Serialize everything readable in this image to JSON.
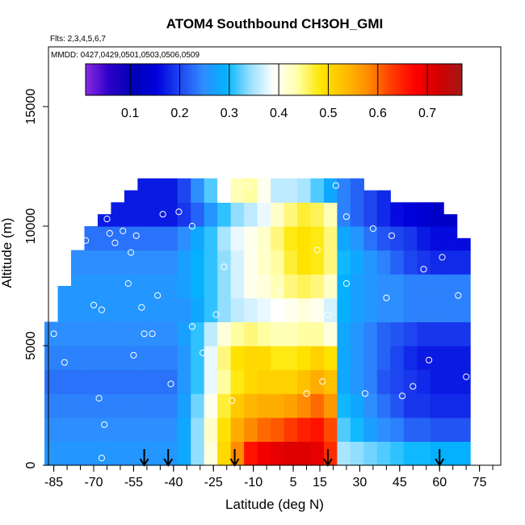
{
  "chart_data": {
    "type": "heatmap",
    "title": "ATOM4 Southbound CH3OH_GMI",
    "subtitle_flights": "Flts: 2,3,4,5,6,7",
    "subtitle_dates": "MMDD: 0427,0429,0501,0503,0506,0509",
    "xlabel": "Latitude (deg N)",
    "ylabel": "Altitude (m)",
    "xlim": [
      -87,
      83
    ],
    "ylim": [
      0,
      17500
    ],
    "x_ticks": [
      -85,
      -70,
      -55,
      -40,
      -25,
      -10,
      5,
      15,
      30,
      45,
      60,
      75
    ],
    "x_minor_step": 5,
    "y_ticks": [
      0,
      5000,
      10000,
      15000
    ],
    "colorbar": {
      "min": 0.01,
      "max": 0.77,
      "ticks": [
        0.1,
        0.2,
        0.3,
        0.4,
        0.5,
        0.6,
        0.7
      ],
      "colors": [
        "#8a2be2",
        "#2b00c8",
        "#0000b4",
        "#0000dc",
        "#1e46f0",
        "#2f8cff",
        "#00b4ff",
        "#99e0ff",
        "#ffffff",
        "#ffffaa",
        "#ffe600",
        "#ffbe00",
        "#ff8c00",
        "#ff3c00",
        "#ff0000",
        "#d20000",
        "#a51818"
      ]
    },
    "field": {
      "lat": [
        -86.0,
        -81.0,
        -76.0,
        -71.0,
        -66.0,
        -61.0,
        -56.0,
        -51.0,
        -46.0,
        -41.0,
        -36.0,
        -31.0,
        -26.0,
        -21.0,
        -16.0,
        -11.0,
        -6.0,
        -1.0,
        4.0,
        9.0,
        14.0,
        19.0,
        24.0,
        29.0,
        34.0,
        39.0,
        44.0,
        49.0,
        54.0,
        59.0,
        64.0,
        69.0
      ],
      "alt": [
        250,
        750,
        1250,
        1750,
        2250,
        2750,
        3250,
        3750,
        4250,
        4750,
        5250,
        5750,
        6250,
        6750,
        7250,
        7750,
        8250,
        8750,
        9250,
        9750,
        10250,
        10750,
        11250,
        11750
      ],
      "values": [
        [
          0.26,
          0.26,
          0.26,
          0.26,
          0.26,
          0.26,
          0.26,
          0.26,
          0.26,
          0.26,
          0.28,
          0.34,
          0.41,
          0.5,
          0.58,
          0.66,
          0.69,
          0.7,
          0.71,
          0.71,
          0.7,
          0.64,
          0.35,
          0.34,
          0.33,
          0.32,
          0.31,
          0.3,
          0.3,
          0.29,
          0.29,
          0.29
        ],
        [
          0.26,
          0.26,
          0.26,
          0.26,
          0.26,
          0.26,
          0.26,
          0.26,
          0.26,
          0.26,
          0.28,
          0.34,
          0.41,
          0.5,
          0.58,
          0.66,
          0.69,
          0.7,
          0.71,
          0.71,
          0.7,
          0.64,
          0.35,
          0.34,
          0.33,
          0.32,
          0.31,
          0.3,
          0.3,
          0.29,
          0.29,
          0.29
        ],
        [
          0.25,
          0.25,
          0.25,
          0.25,
          0.25,
          0.25,
          0.25,
          0.25,
          0.25,
          0.25,
          0.28,
          0.34,
          0.42,
          0.49,
          0.55,
          0.58,
          0.6,
          0.61,
          0.63,
          0.65,
          0.66,
          0.62,
          0.32,
          0.3,
          0.27,
          0.25,
          0.24,
          0.22,
          0.22,
          0.21,
          0.21,
          0.21
        ],
        [
          0.25,
          0.25,
          0.25,
          0.25,
          0.25,
          0.25,
          0.25,
          0.25,
          0.25,
          0.25,
          0.28,
          0.34,
          0.42,
          0.49,
          0.55,
          0.58,
          0.6,
          0.61,
          0.63,
          0.65,
          0.66,
          0.62,
          0.32,
          0.3,
          0.27,
          0.25,
          0.24,
          0.22,
          0.22,
          0.21,
          0.21,
          0.21
        ],
        [
          0.24,
          0.24,
          0.24,
          0.24,
          0.24,
          0.24,
          0.24,
          0.24,
          0.24,
          0.24,
          0.27,
          0.33,
          0.4,
          0.47,
          0.52,
          0.54,
          0.55,
          0.55,
          0.56,
          0.58,
          0.6,
          0.57,
          0.3,
          0.28,
          0.25,
          0.23,
          0.21,
          0.19,
          0.19,
          0.18,
          0.18,
          0.18
        ],
        [
          0.24,
          0.24,
          0.24,
          0.24,
          0.24,
          0.24,
          0.24,
          0.24,
          0.24,
          0.24,
          0.27,
          0.33,
          0.4,
          0.47,
          0.52,
          0.54,
          0.55,
          0.55,
          0.56,
          0.58,
          0.6,
          0.57,
          0.3,
          0.28,
          0.25,
          0.23,
          0.21,
          0.19,
          0.19,
          0.18,
          0.18,
          0.18
        ],
        [
          0.23,
          0.23,
          0.23,
          0.23,
          0.23,
          0.23,
          0.23,
          0.23,
          0.23,
          0.23,
          0.26,
          0.31,
          0.38,
          0.44,
          0.48,
          0.5,
          0.51,
          0.51,
          0.51,
          0.53,
          0.55,
          0.53,
          0.28,
          0.26,
          0.24,
          0.21,
          0.2,
          0.19,
          0.18,
          0.17,
          0.17,
          0.17
        ],
        [
          0.23,
          0.23,
          0.23,
          0.23,
          0.23,
          0.23,
          0.23,
          0.23,
          0.23,
          0.23,
          0.26,
          0.31,
          0.38,
          0.44,
          0.48,
          0.5,
          0.51,
          0.51,
          0.51,
          0.53,
          0.55,
          0.53,
          0.28,
          0.26,
          0.24,
          0.21,
          0.2,
          0.19,
          0.18,
          0.17,
          0.17,
          0.17
        ],
        [
          0.24,
          0.24,
          0.24,
          0.24,
          0.24,
          0.24,
          0.24,
          0.24,
          0.24,
          0.24,
          0.26,
          0.31,
          0.38,
          0.45,
          0.49,
          0.5,
          0.5,
          0.48,
          0.48,
          0.49,
          0.51,
          0.49,
          0.28,
          0.26,
          0.24,
          0.22,
          0.2,
          0.18,
          0.17,
          0.17,
          0.17,
          0.17
        ],
        [
          0.24,
          0.24,
          0.24,
          0.24,
          0.24,
          0.24,
          0.24,
          0.24,
          0.24,
          0.24,
          0.26,
          0.31,
          0.38,
          0.45,
          0.49,
          0.5,
          0.5,
          0.48,
          0.48,
          0.49,
          0.51,
          0.49,
          0.28,
          0.26,
          0.24,
          0.22,
          0.2,
          0.18,
          0.17,
          0.17,
          0.17,
          0.17
        ],
        [
          0.25,
          0.25,
          0.25,
          0.25,
          0.25,
          0.25,
          0.25,
          0.25,
          0.25,
          0.25,
          0.27,
          0.31,
          0.36,
          0.41,
          0.44,
          0.45,
          0.44,
          0.43,
          0.43,
          0.44,
          0.44,
          0.41,
          0.28,
          0.26,
          0.24,
          0.22,
          0.21,
          0.2,
          0.19,
          0.19,
          0.19,
          0.19
        ],
        [
          0.25,
          0.25,
          0.25,
          0.25,
          0.25,
          0.25,
          0.25,
          0.25,
          0.25,
          0.25,
          0.27,
          0.31,
          0.36,
          0.41,
          0.44,
          0.45,
          0.44,
          0.43,
          0.43,
          0.44,
          0.44,
          0.41,
          0.28,
          0.26,
          0.24,
          0.22,
          0.21,
          0.2,
          0.19,
          0.19,
          0.19,
          0.19
        ],
        [
          0.26,
          0.26,
          0.26,
          0.26,
          0.26,
          0.26,
          0.26,
          0.26,
          0.26,
          0.26,
          0.26,
          0.28,
          0.31,
          0.34,
          0.36,
          0.37,
          0.38,
          0.39,
          0.4,
          0.41,
          0.4,
          0.37,
          0.29,
          0.27,
          0.26,
          0.25,
          0.25,
          0.24,
          0.24,
          0.24,
          0.24,
          0.24
        ],
        [
          0.26,
          0.26,
          0.26,
          0.26,
          0.26,
          0.26,
          0.26,
          0.26,
          0.26,
          0.26,
          0.26,
          0.28,
          0.31,
          0.34,
          0.36,
          0.37,
          0.38,
          0.39,
          0.4,
          0.41,
          0.4,
          0.37,
          0.29,
          0.27,
          0.26,
          0.25,
          0.25,
          0.24,
          0.24,
          0.24,
          0.24,
          0.24
        ],
        [
          0.26,
          0.26,
          0.26,
          0.26,
          0.26,
          0.26,
          0.26,
          0.26,
          0.26,
          0.26,
          0.27,
          0.29,
          0.31,
          0.34,
          0.37,
          0.4,
          0.41,
          0.43,
          0.45,
          0.46,
          0.45,
          0.42,
          0.29,
          0.27,
          0.26,
          0.25,
          0.25,
          0.24,
          0.24,
          0.24,
          0.24,
          0.24
        ],
        [
          0.26,
          0.26,
          0.26,
          0.26,
          0.26,
          0.26,
          0.26,
          0.26,
          0.26,
          0.26,
          0.27,
          0.29,
          0.31,
          0.34,
          0.37,
          0.4,
          0.41,
          0.43,
          0.45,
          0.46,
          0.45,
          0.42,
          0.29,
          0.27,
          0.26,
          0.25,
          0.25,
          0.24,
          0.24,
          0.24,
          0.24,
          0.24
        ],
        [
          0.25,
          0.25,
          0.25,
          0.25,
          0.25,
          0.25,
          0.25,
          0.25,
          0.25,
          0.25,
          0.27,
          0.29,
          0.31,
          0.34,
          0.37,
          0.4,
          0.42,
          0.44,
          0.47,
          0.49,
          0.48,
          0.45,
          0.3,
          0.28,
          0.26,
          0.24,
          0.22,
          0.2,
          0.19,
          0.18,
          0.18,
          0.18
        ],
        [
          0.25,
          0.25,
          0.25,
          0.25,
          0.25,
          0.25,
          0.25,
          0.25,
          0.25,
          0.25,
          0.27,
          0.29,
          0.31,
          0.34,
          0.37,
          0.4,
          0.42,
          0.44,
          0.47,
          0.49,
          0.48,
          0.45,
          0.3,
          0.28,
          0.26,
          0.24,
          0.22,
          0.2,
          0.19,
          0.18,
          0.18,
          0.18
        ],
        [
          0.23,
          0.23,
          0.23,
          0.23,
          0.23,
          0.23,
          0.23,
          0.23,
          0.23,
          0.23,
          0.25,
          0.28,
          0.31,
          0.35,
          0.38,
          0.4,
          0.42,
          0.45,
          0.48,
          0.49,
          0.48,
          0.45,
          0.28,
          0.26,
          0.23,
          0.21,
          0.2,
          0.19,
          0.17,
          0.16,
          0.16,
          0.16
        ],
        [
          0.23,
          0.23,
          0.23,
          0.23,
          0.23,
          0.23,
          0.23,
          0.23,
          0.23,
          0.23,
          0.25,
          0.28,
          0.31,
          0.35,
          0.38,
          0.4,
          0.42,
          0.45,
          0.48,
          0.49,
          0.48,
          0.45,
          0.28,
          0.26,
          0.23,
          0.21,
          0.2,
          0.19,
          0.17,
          0.16,
          0.16,
          0.16
        ],
        [
          0.17,
          0.17,
          0.17,
          0.17,
          0.17,
          0.17,
          0.17,
          0.17,
          0.17,
          0.17,
          0.19,
          0.22,
          0.26,
          0.31,
          0.34,
          0.36,
          0.38,
          0.42,
          0.45,
          0.47,
          0.46,
          0.43,
          0.24,
          0.22,
          0.2,
          0.18,
          0.16,
          0.15,
          0.14,
          0.13,
          0.13,
          0.13
        ],
        [
          0.17,
          0.17,
          0.17,
          0.17,
          0.17,
          0.17,
          0.17,
          0.17,
          0.17,
          0.17,
          0.19,
          0.22,
          0.26,
          0.31,
          0.34,
          0.36,
          0.38,
          0.42,
          0.45,
          0.47,
          0.46,
          0.43,
          0.24,
          0.22,
          0.2,
          0.18,
          0.16,
          0.15,
          0.14,
          0.13,
          0.13,
          0.13
        ],
        [
          0.17,
          0.17,
          0.17,
          0.17,
          0.17,
          0.17,
          0.17,
          0.17,
          0.17,
          0.17,
          0.2,
          0.25,
          0.32,
          0.39,
          0.43,
          0.44,
          0.4,
          0.36,
          0.36,
          0.35,
          0.32,
          0.28,
          0.24,
          0.22,
          0.2,
          0.18,
          0.16,
          0.15,
          0.14,
          0.13,
          0.13,
          0.13
        ],
        [
          0.17,
          0.17,
          0.17,
          0.17,
          0.17,
          0.17,
          0.17,
          0.17,
          0.17,
          0.17,
          0.2,
          0.25,
          0.32,
          0.39,
          0.43,
          0.44,
          0.4,
          0.36,
          0.36,
          0.35,
          0.32,
          0.28,
          0.24,
          0.22,
          0.2,
          0.18,
          0.16,
          0.15,
          0.14,
          0.13,
          0.13,
          0.13
        ]
      ],
      "bounds": {
        "lat_min": [
          -86.0,
          -86.0,
          -86.0,
          -86.0,
          -86.0,
          -86.0,
          -86.0,
          -86.0,
          -86.0,
          -86.0,
          -86.0,
          -86.0,
          -85.0,
          -83.0,
          -82.0,
          -80.0,
          -78.0,
          -76.0,
          -74.0,
          -72.0,
          -70.0,
          -64.0,
          -58.0,
          -52.0
        ],
        "lat_max": [
          70.0,
          70.0,
          70.0,
          70.0,
          70.0,
          70.0,
          70.0,
          70.0,
          70.0,
          70.0,
          70.0,
          70.0,
          70.0,
          70.0,
          70.0,
          70.0,
          70.0,
          70.0,
          70.0,
          67.0,
          65.0,
          60.0,
          40.0,
          30.0
        ]
      }
    },
    "observations": [
      {
        "lat": -85.0,
        "alt": 5500
      },
      {
        "lat": -81.0,
        "alt": 4300
      },
      {
        "lat": -73.0,
        "alt": 9400
      },
      {
        "lat": -70.0,
        "alt": 6700
      },
      {
        "lat": -67.0,
        "alt": 6500
      },
      {
        "lat": -66.0,
        "alt": 1700
      },
      {
        "lat": -67.0,
        "alt": 300
      },
      {
        "lat": -68.0,
        "alt": 2800
      },
      {
        "lat": -65.0,
        "alt": 10300
      },
      {
        "lat": -64.0,
        "alt": 9700
      },
      {
        "lat": -62.0,
        "alt": 9300
      },
      {
        "lat": -60.0,
        "alt": 11300
      },
      {
        "lat": -59.0,
        "alt": 9800
      },
      {
        "lat": -57.0,
        "alt": 7600
      },
      {
        "lat": -56.0,
        "alt": 8900
      },
      {
        "lat": -54.0,
        "alt": 9600
      },
      {
        "lat": -55.0,
        "alt": 4600
      },
      {
        "lat": -52.0,
        "alt": 6600
      },
      {
        "lat": -51.0,
        "alt": 5500
      },
      {
        "lat": -48.0,
        "alt": 5500
      },
      {
        "lat": -46.0,
        "alt": 7100
      },
      {
        "lat": -44.0,
        "alt": 10500
      },
      {
        "lat": -41.0,
        "alt": 3400
      },
      {
        "lat": -38.0,
        "alt": 10600
      },
      {
        "lat": -33.0,
        "alt": 5800
      },
      {
        "lat": -33.0,
        "alt": 10000
      },
      {
        "lat": -29.0,
        "alt": 4700
      },
      {
        "lat": -24.0,
        "alt": 6300
      },
      {
        "lat": -21.0,
        "alt": 8300
      },
      {
        "lat": -18.0,
        "alt": 2700
      },
      {
        "lat": -12.0,
        "alt": 11700
      },
      {
        "lat": 0.0,
        "alt": 7300
      },
      {
        "lat": 10.0,
        "alt": 3000
      },
      {
        "lat": 14.0,
        "alt": 9000
      },
      {
        "lat": 16.0,
        "alt": 3500
      },
      {
        "lat": 18.0,
        "alt": 6300
      },
      {
        "lat": 21.0,
        "alt": 11700
      },
      {
        "lat": 25.0,
        "alt": 10400
      },
      {
        "lat": 25.0,
        "alt": 7600
      },
      {
        "lat": 32.0,
        "alt": 3000
      },
      {
        "lat": 35.0,
        "alt": 9900
      },
      {
        "lat": 40.0,
        "alt": 7000
      },
      {
        "lat": 42.0,
        "alt": 9600
      },
      {
        "lat": 46.0,
        "alt": 2900
      },
      {
        "lat": 50.0,
        "alt": 3300
      },
      {
        "lat": 54.0,
        "alt": 8200
      },
      {
        "lat": 56.0,
        "alt": 4400
      },
      {
        "lat": 61.0,
        "alt": 8700
      },
      {
        "lat": 67.0,
        "alt": 7100
      },
      {
        "lat": 70.0,
        "alt": 3700
      }
    ],
    "profile_markers_lat": [
      -51,
      -42,
      -17,
      18,
      60
    ]
  }
}
